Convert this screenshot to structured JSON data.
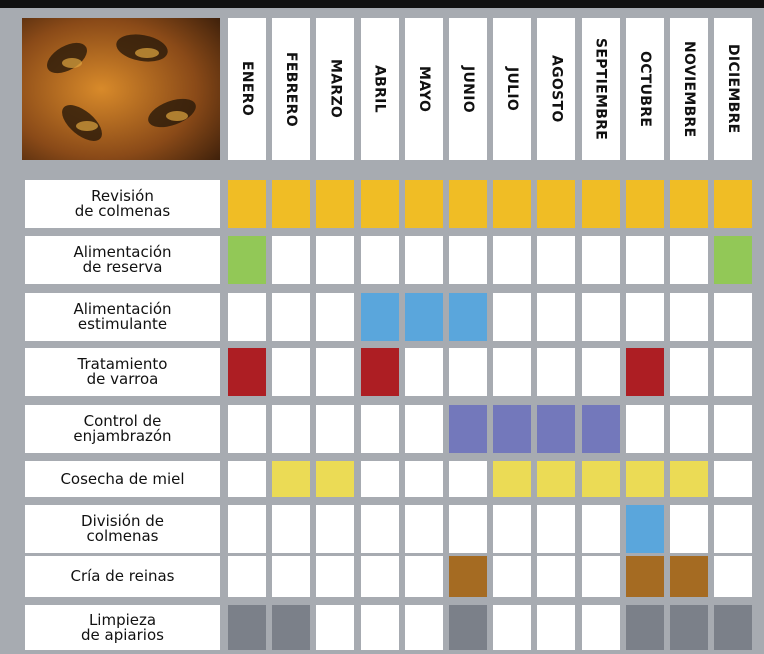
{
  "table": {
    "months": [
      "ENERO",
      "FEBRERO",
      "MARZO",
      "ABRIL",
      "MAYO",
      "JUNIO",
      "JULIO",
      "AGOSTO",
      "SEPTIEMBRE",
      "OCTUBRE",
      "NOVIEMBRE",
      "DICIEMBRE"
    ],
    "rows": [
      {
        "label": [
          "Revisión",
          "de colmenas"
        ],
        "color": "#f0bd25",
        "active": [
          true,
          true,
          true,
          true,
          true,
          true,
          true,
          true,
          true,
          true,
          true,
          true
        ]
      },
      {
        "label": [
          "Alimentación",
          "de reserva"
        ],
        "color": "#92c857",
        "active": [
          true,
          false,
          false,
          false,
          false,
          false,
          false,
          false,
          false,
          false,
          false,
          true
        ]
      },
      {
        "label": [
          "Alimentación",
          "estimulante"
        ],
        "color": "#5aa6dc",
        "active": [
          false,
          false,
          false,
          true,
          true,
          true,
          false,
          false,
          false,
          false,
          false,
          false
        ]
      },
      {
        "label": [
          "Tratamiento",
          "de varroa"
        ],
        "color": "#ad1e23",
        "active": [
          true,
          false,
          false,
          true,
          false,
          false,
          false,
          false,
          false,
          true,
          false,
          false
        ]
      },
      {
        "label": [
          "Control de",
          "enjambrazón"
        ],
        "color": "#7378bb",
        "active": [
          false,
          false,
          false,
          false,
          false,
          true,
          true,
          true,
          true,
          false,
          false,
          false
        ]
      },
      {
        "label": [
          "Cosecha de miel"
        ],
        "color": "#ebdb55",
        "active": [
          false,
          true,
          true,
          false,
          false,
          false,
          true,
          true,
          true,
          true,
          true,
          false
        ]
      },
      {
        "label": [
          "División de",
          "colmenas"
        ],
        "color": "#5aa6dc",
        "active": [
          false,
          false,
          false,
          false,
          false,
          false,
          false,
          false,
          false,
          true,
          false,
          false
        ]
      },
      {
        "label": [
          "Cría de reinas"
        ],
        "color": "#a56b22",
        "active": [
          false,
          false,
          false,
          false,
          false,
          true,
          false,
          false,
          false,
          true,
          true,
          false
        ]
      },
      {
        "label": [
          "Limpieza",
          "de apiarios"
        ],
        "color": "#7b8089",
        "active": [
          true,
          true,
          false,
          false,
          false,
          true,
          false,
          false,
          false,
          true,
          true,
          true
        ]
      }
    ]
  }
}
